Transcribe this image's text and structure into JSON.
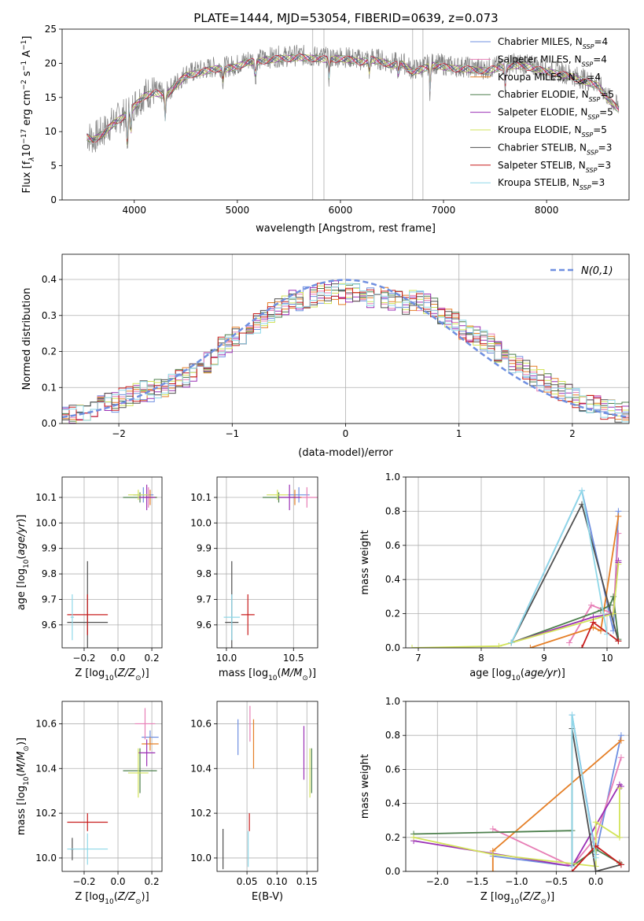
{
  "figure_title": "PLATE=1444, MJD=53054, FIBERID=0639, z=0.073",
  "models": [
    {
      "name": "Chabrier MILES, N_SSP=4",
      "label_main": "Chabrier MILES, N",
      "label_sub": "SSP",
      "label_tail": "=4",
      "color": "#6f8fe0"
    },
    {
      "name": "Salpeter MILES, N_SSP=4",
      "label_main": "Salpeter MILES, N",
      "label_sub": "SSP",
      "label_tail": "=4",
      "color": "#e77fb6"
    },
    {
      "name": "Kroupa MILES, N_SSP=4",
      "label_main": "Kroupa MILES, N",
      "label_sub": "SSP",
      "label_tail": "=4",
      "color": "#e57f27"
    },
    {
      "name": "Chabrier ELODIE, N_SSP=5",
      "label_main": "Chabrier ELODIE, N",
      "label_sub": "SSP",
      "label_tail": "=5",
      "color": "#4c7f4c"
    },
    {
      "name": "Salpeter ELODIE, N_SSP=5",
      "label_main": "Salpeter ELODIE, N",
      "label_sub": "SSP",
      "label_tail": "=5",
      "color": "#9b30b5"
    },
    {
      "name": "Kroupa ELODIE, N_SSP=5",
      "label_main": "Kroupa ELODIE, N",
      "label_sub": "SSP",
      "label_tail": "=5",
      "color": "#d2e35a"
    },
    {
      "name": "Chabrier STELIB, N_SSP=3",
      "label_main": "Chabrier STELIB, N",
      "label_sub": "SSP",
      "label_tail": "=3",
      "color": "#505050"
    },
    {
      "name": "Salpeter STELIB, N_SSP=3",
      "label_main": "Salpeter STELIB, N",
      "label_sub": "SSP",
      "label_tail": "=3",
      "color": "#c81e1e"
    },
    {
      "name": "Kroupa STELIB, N_SSP=3",
      "label_main": "Kroupa STELIB, N",
      "label_sub": "SSP",
      "label_tail": "=3",
      "color": "#8fd8e8"
    }
  ],
  "chart_data": [
    {
      "id": "spectrum",
      "type": "line",
      "xlabel": "wavelength [Angstrom, rest frame]",
      "ylabel": "Flux [f_λ 10^-17 erg cm^-2 s^-1 A^-1]",
      "xlim": [
        3300,
        8800
      ],
      "ylim": [
        0,
        25
      ],
      "xticks": [
        4000,
        5000,
        6000,
        7000,
        8000
      ],
      "yticks": [
        0,
        5,
        10,
        15,
        20,
        25
      ],
      "grid": false,
      "legend": "top-right",
      "observed_color": "#808080",
      "continuum": {
        "x": [
          3540,
          3600,
          3700,
          3800,
          3900,
          4000,
          4100,
          4200,
          4300,
          4400,
          4500,
          4600,
          4700,
          4800,
          4900,
          5000,
          5100,
          5200,
          5300,
          5400,
          5500,
          5600,
          5700,
          5800,
          5900,
          6000,
          6100,
          6200,
          6300,
          6400,
          6500,
          6600,
          6700,
          6800,
          6900,
          7000,
          7100,
          7200,
          7300,
          7400,
          7500,
          7600,
          7700,
          7800,
          7900,
          8000,
          8100,
          8200,
          8300,
          8400,
          8500,
          8600,
          8700
        ],
        "y": [
          9.5,
          9.0,
          10.0,
          11.5,
          12.5,
          14.0,
          15.5,
          16.0,
          15.5,
          17.0,
          18.5,
          18.8,
          19.2,
          19.5,
          19.5,
          19.8,
          20.5,
          20.5,
          20.8,
          21.0,
          21.0,
          21.2,
          21.0,
          21.0,
          20.8,
          21.0,
          20.8,
          20.5,
          20.8,
          20.5,
          20.0,
          20.2,
          19.0,
          19.5,
          20.0,
          19.8,
          19.5,
          19.5,
          19.3,
          19.2,
          19.5,
          19.8,
          20.0,
          19.8,
          19.5,
          19.0,
          18.8,
          18.5,
          18.0,
          17.5,
          17.0,
          15.0,
          13.5
        ]
      },
      "absorption_lines": [
        {
          "x": 3933,
          "depth": 6
        },
        {
          "x": 3968,
          "depth": 4
        },
        {
          "x": 4300,
          "depth": 4
        },
        {
          "x": 4861,
          "depth": 2
        },
        {
          "x": 5175,
          "depth": 3
        },
        {
          "x": 5890,
          "depth": 3
        },
        {
          "x": 6280,
          "depth": 2
        },
        {
          "x": 6563,
          "depth": 2
        },
        {
          "x": 6870,
          "depth": 4
        },
        {
          "x": 7600,
          "depth": 3
        }
      ],
      "masked_lines": [
        5730,
        5840,
        6700,
        6800
      ]
    },
    {
      "id": "residuals",
      "type": "histogram",
      "xlabel": "(data-model)/error",
      "ylabel": "Normed distribution",
      "xlim": [
        -2.5,
        2.5
      ],
      "ylim": [
        0,
        0.47
      ],
      "xticks": [
        -2,
        -1,
        0,
        1,
        2
      ],
      "yticks": [
        0.0,
        0.1,
        0.2,
        0.3,
        0.4
      ],
      "grid": true,
      "legend": "top-right",
      "reference": {
        "name": "N(0,1)",
        "mean": 0,
        "sigma": 1,
        "color": "#6f8fe0",
        "dash": "dashed"
      },
      "bin_width": 0.1,
      "base_histogram": [
        0.02,
        0.025,
        0.03,
        0.035,
        0.04,
        0.05,
        0.055,
        0.06,
        0.07,
        0.075,
        0.085,
        0.09,
        0.09,
        0.1,
        0.1,
        0.11,
        0.12,
        0.13,
        0.14,
        0.16,
        0.17,
        0.19,
        0.21,
        0.22,
        0.24,
        0.25,
        0.26,
        0.28,
        0.29,
        0.31,
        0.32,
        0.33,
        0.34,
        0.34,
        0.35,
        0.35,
        0.36,
        0.36,
        0.37,
        0.36,
        0.36,
        0.36,
        0.35,
        0.35,
        0.35,
        0.35,
        0.34,
        0.34,
        0.33,
        0.34,
        0.34,
        0.33,
        0.32,
        0.3,
        0.29,
        0.28,
        0.26,
        0.25,
        0.24,
        0.23,
        0.22,
        0.2,
        0.18,
        0.17,
        0.16,
        0.15,
        0.13,
        0.12,
        0.11,
        0.1,
        0.09,
        0.08,
        0.07,
        0.06,
        0.05,
        0.05,
        0.04,
        0.04,
        0.03,
        0.03
      ]
    },
    {
      "id": "age_vs_Z",
      "type": "scatter",
      "errorbars": true,
      "xlabel": "Z [log10(Z/Z⊙)]",
      "ylabel": "age  [log10(age/yr)]",
      "xlim": [
        -0.33,
        0.26
      ],
      "ylim": [
        9.51,
        10.18
      ],
      "xticks": [
        -0.2,
        0.0,
        0.2
      ],
      "yticks": [
        9.6,
        9.7,
        9.8,
        9.9,
        10.0,
        10.1
      ],
      "grid": true,
      "points": [
        {
          "m": 0,
          "x": 0.15,
          "y": 10.11,
          "xerr": 0.06,
          "yerr": 0.03
        },
        {
          "m": 1,
          "x": 0.18,
          "y": 10.1,
          "xerr": 0.05,
          "yerr": 0.04
        },
        {
          "m": 2,
          "x": 0.19,
          "y": 10.1,
          "xerr": 0.04,
          "yerr": 0.03
        },
        {
          "m": 3,
          "x": 0.13,
          "y": 10.1,
          "xerr": 0.1,
          "yerr": 0.02
        },
        {
          "m": 4,
          "x": 0.17,
          "y": 10.1,
          "xerr": 0.05,
          "yerr": 0.05
        },
        {
          "m": 5,
          "x": 0.12,
          "y": 10.11,
          "xerr": 0.06,
          "yerr": 0.02
        },
        {
          "m": 6,
          "x": -0.18,
          "y": 9.61,
          "xerr": 0.12,
          "yerr": 0.24
        },
        {
          "m": 7,
          "x": -0.18,
          "y": 9.64,
          "xerr": 0.12,
          "yerr": 0.08
        },
        {
          "m": 8,
          "x": -0.27,
          "y": 9.63,
          "xerr": 0.01,
          "yerr": 0.09
        }
      ]
    },
    {
      "id": "age_vs_mass",
      "type": "scatter",
      "errorbars": true,
      "xlabel": "mass [log10(M/M⊙)]",
      "ylabel": "",
      "xlim": [
        9.93,
        10.68
      ],
      "ylim": [
        9.51,
        10.18
      ],
      "xticks": [
        10.0,
        10.5
      ],
      "yticks": [
        9.6,
        9.7,
        9.8,
        9.9,
        10.0,
        10.1
      ],
      "grid": true,
      "points": [
        {
          "m": 0,
          "x": 10.54,
          "y": 10.11,
          "xerr": 0.08,
          "yerr": 0.03
        },
        {
          "m": 1,
          "x": 10.6,
          "y": 10.1,
          "xerr": 0.1,
          "yerr": 0.04
        },
        {
          "m": 2,
          "x": 10.51,
          "y": 10.1,
          "xerr": 0.05,
          "yerr": 0.03
        },
        {
          "m": 3,
          "x": 10.39,
          "y": 10.1,
          "xerr": 0.12,
          "yerr": 0.02
        },
        {
          "m": 4,
          "x": 10.47,
          "y": 10.1,
          "xerr": 0.08,
          "yerr": 0.05
        },
        {
          "m": 5,
          "x": 10.38,
          "y": 10.11,
          "xerr": 0.08,
          "yerr": 0.02
        },
        {
          "m": 6,
          "x": 10.04,
          "y": 9.61,
          "xerr": 0.05,
          "yerr": 0.24
        },
        {
          "m": 7,
          "x": 10.16,
          "y": 9.64,
          "xerr": 0.05,
          "yerr": 0.08
        },
        {
          "m": 8,
          "x": 10.04,
          "y": 9.63,
          "xerr": 0.06,
          "yerr": 0.09
        }
      ]
    },
    {
      "id": "weight_vs_age",
      "type": "line",
      "xlabel": "age  [log10(age/yr)]",
      "ylabel": "mass weight",
      "xlim": [
        6.8,
        10.35
      ],
      "ylim": [
        0,
        1
      ],
      "xticks": [
        7,
        8,
        9,
        10
      ],
      "yticks": [
        0.0,
        0.2,
        0.4,
        0.6,
        0.8,
        1.0
      ],
      "grid": true,
      "series": [
        {
          "m": 0,
          "x": [
            8.48,
            9.6,
            10.1,
            10.18
          ],
          "y": [
            0.03,
            0.92,
            0.1,
            0.8
          ]
        },
        {
          "m": 1,
          "x": [
            9.4,
            9.75,
            10.1,
            10.18
          ],
          "y": [
            0.03,
            0.25,
            0.2,
            0.67
          ]
        },
        {
          "m": 2,
          "x": [
            8.78,
            9.78,
            9.9,
            10.18
          ],
          "y": [
            0.0,
            0.12,
            0.1,
            0.77
          ]
        },
        {
          "m": 3,
          "x": [
            8.48,
            9.9,
            10.05,
            10.1,
            10.18
          ],
          "y": [
            0.03,
            0.22,
            0.25,
            0.3,
            0.05
          ]
        },
        {
          "m": 4,
          "x": [
            8.48,
            9.78,
            10.1,
            10.18,
            10.18
          ],
          "y": [
            0.03,
            0.18,
            0.2,
            0.51,
            0.5
          ]
        },
        {
          "m": 5,
          "x": [
            6.9,
            8.28,
            8.48,
            10.1,
            10.18
          ],
          "y": [
            0.0,
            0.01,
            0.03,
            0.2,
            0.49
          ]
        },
        {
          "m": 6,
          "x": [
            8.48,
            9.6,
            10.18
          ],
          "y": [
            0.03,
            0.84,
            0.04
          ]
        },
        {
          "m": 7,
          "x": [
            9.6,
            9.78,
            10.18
          ],
          "y": [
            0.0,
            0.15,
            0.04
          ]
        },
        {
          "m": 8,
          "x": [
            8.48,
            9.6,
            10.0
          ],
          "y": [
            0.03,
            0.92,
            0.08
          ]
        }
      ]
    },
    {
      "id": "mass_vs_Z",
      "type": "scatter",
      "errorbars": true,
      "xlabel": "Z [log10(Z/Z⊙)]",
      "ylabel": "mass [log10(M/M⊙)]",
      "xlim": [
        -0.33,
        0.26
      ],
      "ylim": [
        9.94,
        10.7
      ],
      "xticks": [
        -0.2,
        0.0,
        0.2
      ],
      "yticks": [
        10.0,
        10.2,
        10.4,
        10.6
      ],
      "grid": true,
      "points": [
        {
          "m": 0,
          "x": 0.19,
          "y": 10.54,
          "xerr": 0.05,
          "yerr": 0.03
        },
        {
          "m": 1,
          "x": 0.16,
          "y": 10.6,
          "xerr": 0.06,
          "yerr": 0.07
        },
        {
          "m": 2,
          "x": 0.19,
          "y": 10.51,
          "xerr": 0.05,
          "yerr": 0.03
        },
        {
          "m": 3,
          "x": 0.13,
          "y": 10.39,
          "xerr": 0.1,
          "yerr": 0.1
        },
        {
          "m": 4,
          "x": 0.17,
          "y": 10.47,
          "xerr": 0.05,
          "yerr": 0.06
        },
        {
          "m": 5,
          "x": 0.12,
          "y": 10.38,
          "xerr": 0.06,
          "yerr": 0.11
        },
        {
          "m": 6,
          "x": -0.27,
          "y": 10.04,
          "xerr": 0.01,
          "yerr": 0.05
        },
        {
          "m": 7,
          "x": -0.18,
          "y": 10.16,
          "xerr": 0.12,
          "yerr": 0.04
        },
        {
          "m": 8,
          "x": -0.18,
          "y": 10.04,
          "xerr": 0.12,
          "yerr": 0.07
        }
      ]
    },
    {
      "id": "mass_vs_ebv",
      "type": "scatter",
      "errorbars": true,
      "xlabel": "E(B-V)",
      "ylabel": "",
      "xlim": [
        0.0,
        0.168
      ],
      "ylim": [
        9.94,
        10.7
      ],
      "xticks": [
        0.05,
        0.1,
        0.15
      ],
      "yticks": [
        10.0,
        10.2,
        10.4,
        10.6
      ],
      "grid": true,
      "points": [
        {
          "m": 0,
          "x": 0.035,
          "y": 10.54,
          "xerr": 0.0,
          "yerr": 0.08
        },
        {
          "m": 1,
          "x": 0.055,
          "y": 10.6,
          "xerr": 0.0,
          "yerr": 0.08
        },
        {
          "m": 2,
          "x": 0.061,
          "y": 10.51,
          "xerr": 0.0,
          "yerr": 0.11
        },
        {
          "m": 3,
          "x": 0.158,
          "y": 10.39,
          "xerr": 0.0,
          "yerr": 0.1
        },
        {
          "m": 4,
          "x": 0.145,
          "y": 10.47,
          "xerr": 0.0,
          "yerr": 0.12
        },
        {
          "m": 5,
          "x": 0.155,
          "y": 10.38,
          "xerr": 0.0,
          "yerr": 0.11
        },
        {
          "m": 6,
          "x": 0.01,
          "y": 10.04,
          "xerr": 0.0,
          "yerr": 0.09
        },
        {
          "m": 7,
          "x": 0.054,
          "y": 10.16,
          "xerr": 0.0,
          "yerr": 0.04
        },
        {
          "m": 8,
          "x": 0.052,
          "y": 10.04,
          "xerr": 0.0,
          "yerr": 0.08
        }
      ]
    },
    {
      "id": "weight_vs_Z",
      "type": "line",
      "xlabel": "Z [log10(Z/Z⊙)]",
      "ylabel": "mass weight",
      "xlim": [
        -2.4,
        0.42
      ],
      "ylim": [
        0,
        1
      ],
      "xticks": [
        -2.0,
        -1.5,
        -1.0,
        -0.5,
        0.0
      ],
      "yticks": [
        0.0,
        0.2,
        0.4,
        0.6,
        0.8,
        1.0
      ],
      "grid": true,
      "series": [
        {
          "m": 0,
          "x": [
            -1.3,
            -0.3,
            -0.3,
            0.0,
            0.32
          ],
          "y": [
            0.09,
            0.03,
            0.92,
            0.1,
            0.8
          ]
        },
        {
          "m": 1,
          "x": [
            -1.3,
            -0.3,
            -0.3,
            0.0,
            0.32
          ],
          "y": [
            0.25,
            0.03,
            0.03,
            0.2,
            0.67
          ]
        },
        {
          "m": 2,
          "x": [
            -1.3,
            -1.3,
            0.32
          ],
          "y": [
            0.0,
            0.12,
            0.77
          ]
        },
        {
          "m": 3,
          "x": [
            -2.3,
            -0.3,
            -0.3,
            0.0,
            0.3
          ],
          "y": [
            0.22,
            0.24,
            0.03,
            0.13,
            0.05
          ]
        },
        {
          "m": 4,
          "x": [
            -2.3,
            -0.3,
            0.3,
            0.32
          ],
          "y": [
            0.18,
            0.03,
            0.51,
            0.5
          ]
        },
        {
          "m": 5,
          "x": [
            -2.3,
            -1.3,
            0.0,
            0.0,
            0.3,
            0.3
          ],
          "y": [
            0.2,
            0.1,
            0.03,
            0.29,
            0.2,
            0.49
          ]
        },
        {
          "m": 6,
          "x": [
            -0.3,
            -0.3,
            0.0,
            0.32
          ],
          "y": [
            0.03,
            0.84,
            0.0,
            0.04
          ]
        },
        {
          "m": 7,
          "x": [
            -0.3,
            0.0,
            0.32
          ],
          "y": [
            0.0,
            0.15,
            0.04
          ]
        },
        {
          "m": 8,
          "x": [
            -0.3,
            -0.3,
            0.0
          ],
          "y": [
            0.03,
            0.92,
            0.08
          ]
        }
      ]
    }
  ]
}
